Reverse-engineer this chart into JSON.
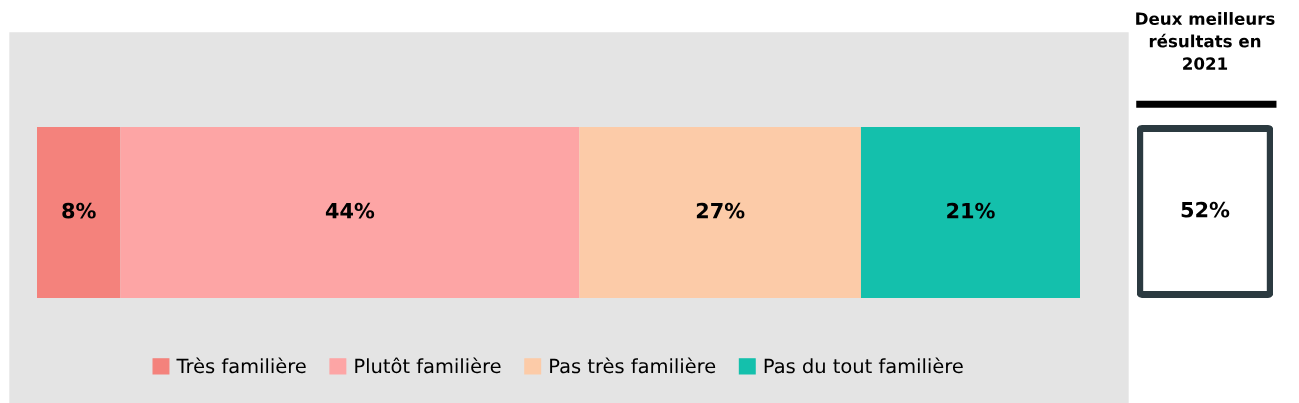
{
  "chart_data": [
    {
      "type": "bar",
      "orientation": "horizontal",
      "stacked": true,
      "categories": [
        null
      ],
      "tick_labels": false,
      "legend": "bottom",
      "grid": false,
      "series": [
        {
          "name": "Très familière",
          "color": "#f4827c",
          "values": [
            8
          ],
          "value_labels": [
            "8%"
          ]
        },
        {
          "name": "Plutôt familière",
          "color": "#fda5a5",
          "values": [
            44
          ],
          "value_labels": [
            "44%"
          ]
        },
        {
          "name": "Pas très familière",
          "color": "#fccba8",
          "values": [
            27
          ],
          "value_labels": [
            "27%"
          ]
        },
        {
          "name": "Pas du tout familière",
          "color": "#14c0ac",
          "values": [
            21
          ],
          "value_labels": [
            "21%"
          ]
        }
      ]
    },
    {
      "type": "other",
      "title": "Deux meilleurs\nrésultats en\n2021",
      "annotations": [
        "52%"
      ]
    }
  ]
}
